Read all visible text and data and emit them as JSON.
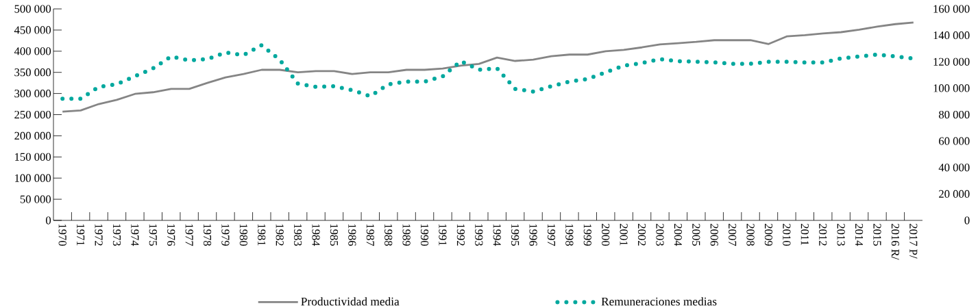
{
  "chart_data": {
    "type": "line",
    "categories": [
      "1970",
      "1971",
      "1972",
      "1973",
      "1974",
      "1975",
      "1976",
      "1977",
      "1978",
      "1979",
      "1980",
      "1981",
      "1982",
      "1983",
      "1984",
      "1985",
      "1986",
      "1987",
      "1988",
      "1989",
      "1990",
      "1991",
      "1992",
      "1993",
      "1994",
      "1995",
      "1996",
      "1997",
      "1998",
      "1999",
      "2000",
      "2001",
      "2002",
      "2003",
      "2004",
      "2005",
      "2006",
      "2007",
      "2008",
      "2009",
      "2010",
      "2011",
      "2012",
      "2013",
      "2014",
      "2015",
      "2016 R/",
      "2017 P/"
    ],
    "series": [
      {
        "name": "Productividad media",
        "color": "#858585",
        "line_style": "solid",
        "values": [
          257000,
          260000,
          275000,
          285000,
          299000,
          303000,
          311000,
          311000,
          325000,
          338000,
          346000,
          356000,
          356000,
          350000,
          353000,
          353000,
          346000,
          350000,
          350000,
          356000,
          356000,
          359000,
          366000,
          370000,
          385000,
          377000,
          380000,
          388000,
          392000,
          392000,
          400000,
          403000,
          409000,
          416000,
          419000,
          422000,
          426000,
          426000,
          426000,
          417000,
          435000,
          438000,
          442000,
          445000,
          451000,
          458000,
          464000,
          468000
        ]
      },
      {
        "name": "Remuneraciones medias",
        "color": "#00a89e",
        "line_style": "dotted",
        "axis": "y2",
        "values": [
          92000,
          92000,
          101000,
          103000,
          109000,
          115000,
          124000,
          121000,
          122000,
          127000,
          125000,
          132500,
          121500,
          103500,
          101000,
          101500,
          98500,
          94000,
          103000,
          105000,
          105000,
          109000,
          120500,
          114000,
          115000,
          99500,
          97500,
          101500,
          105000,
          107000,
          112000,
          117000,
          119000,
          122000,
          120500,
          120000,
          119500,
          118500,
          118500,
          120000,
          120000,
          119500,
          119500,
          122500,
          124000,
          125500,
          124000,
          122500
        ]
      }
    ],
    "ylim": [
      0,
      500000
    ],
    "yticks": [
      0,
      {
        "value": 50000,
        "label": "50 000"
      },
      {
        "value": 100000,
        "label": "100 000"
      },
      {
        "value": 150000,
        "label": "150 000"
      },
      {
        "value": 200000,
        "label": "200 000"
      },
      {
        "value": 250000,
        "label": "250 000"
      },
      {
        "value": 300000,
        "label": "300 000"
      },
      {
        "value": 350000,
        "label": "350 000"
      },
      {
        "value": 400000,
        "label": "400 000"
      },
      {
        "value": 450000,
        "label": "450 000"
      },
      {
        "value": 500000,
        "label": "500 000"
      }
    ],
    "y2lim": [
      0,
      160000
    ],
    "y2ticks": [
      0,
      {
        "value": 20000,
        "label": "20 000"
      },
      {
        "value": 40000,
        "label": "40 000"
      },
      {
        "value": 60000,
        "label": "60 000"
      },
      {
        "value": 80000,
        "label": "80 000"
      },
      {
        "value": 100000,
        "label": "100 000"
      },
      {
        "value": 120000,
        "label": "120 000"
      },
      {
        "value": 140000,
        "label": "140 000"
      },
      {
        "value": 160000,
        "label": "160 000"
      }
    ],
    "legend": "bottom"
  }
}
